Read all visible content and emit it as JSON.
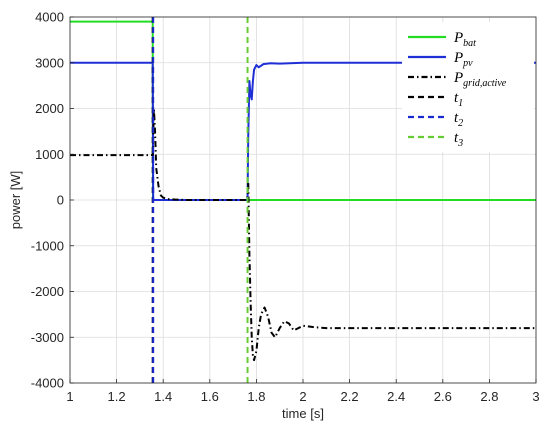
{
  "chart_data": {
    "type": "line",
    "title": "",
    "xlabel": "time [s]",
    "ylabel": "power [W]",
    "xlim": [
      1,
      3
    ],
    "ylim": [
      -4000,
      4000
    ],
    "xticks": [
      1,
      1.2,
      1.4,
      1.6,
      1.8,
      2,
      2.2,
      2.4,
      2.6,
      2.8,
      3
    ],
    "xtick_labels": [
      "1",
      "1.2",
      "1.4",
      "1.6",
      "1.8",
      "2",
      "2.2",
      "2.4",
      "2.6",
      "2.8",
      "3"
    ],
    "yticks": [
      -4000,
      -3000,
      -2000,
      -1000,
      0,
      1000,
      2000,
      3000,
      4000
    ],
    "ytick_labels": [
      "-4000",
      "-3000",
      "-2000",
      "-1000",
      "0",
      "1000",
      "2000",
      "3000",
      "4000"
    ],
    "grid": true,
    "legend_position": "top-right",
    "series": [
      {
        "name": "P",
        "sub": "bat",
        "color": "#22dd22",
        "style": "solid",
        "x": [
          1,
          1.355,
          1.356,
          1.76,
          1.762,
          3
        ],
        "y": [
          3900,
          3900,
          0,
          0,
          0,
          0
        ]
      },
      {
        "name": "P",
        "sub": "pv",
        "color": "#1f2fd6",
        "style": "solid",
        "x": [
          1,
          1.355,
          1.357,
          1.762,
          1.765,
          1.77,
          1.775,
          1.78,
          1.785,
          1.79,
          1.8,
          1.81,
          1.83,
          1.86,
          1.9,
          2,
          3
        ],
        "y": [
          3000,
          3000,
          0,
          0,
          1400,
          2600,
          2300,
          2200,
          2600,
          2850,
          2950,
          2900,
          2970,
          2990,
          2980,
          3000,
          3000
        ]
      },
      {
        "name": "P",
        "sub": "grid,active",
        "color": "#000000",
        "style": "dashdot",
        "x": [
          1,
          1.355,
          1.36,
          1.365,
          1.37,
          1.38,
          1.39,
          1.4,
          1.42,
          1.45,
          1.5,
          1.6,
          1.76,
          1.765,
          1.77,
          1.775,
          1.78,
          1.785,
          1.79,
          1.8,
          1.81,
          1.82,
          1.835,
          1.85,
          1.865,
          1.88,
          1.9,
          1.92,
          1.94,
          1.96,
          1.98,
          2.0,
          2.05,
          2.1,
          3
        ],
        "y": [
          980,
          980,
          2000,
          1500,
          700,
          300,
          100,
          50,
          20,
          10,
          0,
          0,
          0,
          400,
          -1200,
          -2200,
          -3000,
          -3400,
          -3500,
          -3300,
          -2800,
          -2500,
          -2350,
          -2550,
          -2900,
          -3000,
          -2800,
          -2650,
          -2700,
          -2850,
          -2800,
          -2750,
          -2780,
          -2800,
          -2800
        ]
      },
      {
        "name": "t",
        "sub": "1",
        "color": "#000000",
        "style": "dashed",
        "x": [
          1.355,
          1.355
        ],
        "y": [
          -4000,
          4000
        ]
      },
      {
        "name": "t",
        "sub": "2",
        "color": "#1a2ad0",
        "style": "dashed",
        "x": [
          1.357,
          1.357
        ],
        "y": [
          -4000,
          4000
        ]
      },
      {
        "name": "t",
        "sub": "3",
        "color": "#66cc33",
        "style": "dashed",
        "x": [
          1.762,
          1.762
        ],
        "y": [
          -4000,
          4000
        ]
      }
    ]
  }
}
